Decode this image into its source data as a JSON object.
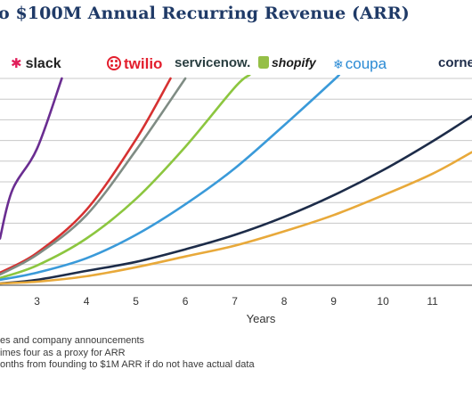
{
  "title": "o $100M Annual Recurring Revenue (ARR)",
  "logos": [
    {
      "name": "slack",
      "text": "slack",
      "color": "#e01e5a"
    },
    {
      "name": "twilio",
      "text": "twilio",
      "color": "#e31e2d"
    },
    {
      "name": "servicenow",
      "text": "servicenow.",
      "color": "#293e40"
    },
    {
      "name": "shopify",
      "text": "shopify",
      "color": "#95bf47"
    },
    {
      "name": "coupa",
      "text": "coupa",
      "color": "#2a8ad4"
    },
    {
      "name": "cornerstone",
      "text": "corne",
      "color": "#1d2c49"
    }
  ],
  "chart_data": {
    "type": "line",
    "xlabel": "Years",
    "ylabel": "",
    "x_ticks": [
      3,
      4,
      5,
      6,
      7,
      8,
      9,
      10,
      11
    ],
    "xlim": [
      2.25,
      11.8
    ],
    "ylim": [
      0,
      115
    ],
    "y_gridlines": 10,
    "grid": true,
    "series": [
      {
        "name": "slack",
        "color": "#6a2d91",
        "x": [
          2.25,
          2.5,
          3.0,
          3.5
        ],
        "y": [
          26,
          53,
          76,
          115
        ]
      },
      {
        "name": "twilio",
        "color": "#d63131",
        "x": [
          2.25,
          3,
          4,
          5,
          5.7
        ],
        "y": [
          7,
          18,
          42,
          81,
          115
        ]
      },
      {
        "name": "servicenow",
        "color": "#7f8c84",
        "x": [
          2.25,
          3,
          4,
          5,
          6
        ],
        "y": [
          6,
          17,
          39,
          75,
          115
        ]
      },
      {
        "name": "shopify",
        "color": "#8cc63f",
        "x": [
          2.25,
          3,
          4,
          5,
          6,
          7,
          7.3
        ],
        "y": [
          4,
          11,
          26,
          48,
          77,
          110,
          117
        ]
      },
      {
        "name": "coupa",
        "color": "#3a9ad9",
        "x": [
          2.25,
          3,
          4,
          5,
          6,
          7,
          8,
          9,
          9.1
        ],
        "y": [
          3,
          7,
          15,
          28,
          45,
          65,
          89,
          114,
          117
        ]
      },
      {
        "name": "cornerstone",
        "color": "#1d2c49",
        "x": [
          2.25,
          3,
          4,
          5,
          6,
          7,
          8,
          9,
          10,
          11,
          11.8
        ],
        "y": [
          1,
          3,
          8,
          13,
          20,
          28,
          38,
          50,
          64,
          80,
          94
        ]
      },
      {
        "name": "",
        "color": "#e8a93a",
        "x": [
          2.25,
          3,
          4,
          5,
          6,
          7,
          8,
          9,
          10,
          11,
          11.8
        ],
        "y": [
          1,
          2,
          5,
          10,
          16,
          22,
          30,
          39,
          50,
          62,
          74
        ]
      }
    ]
  },
  "notes": [
    "es and company announcements",
    "imes four as a proxy for ARR",
    "onths from founding to $1M ARR if do not have actual data"
  ]
}
